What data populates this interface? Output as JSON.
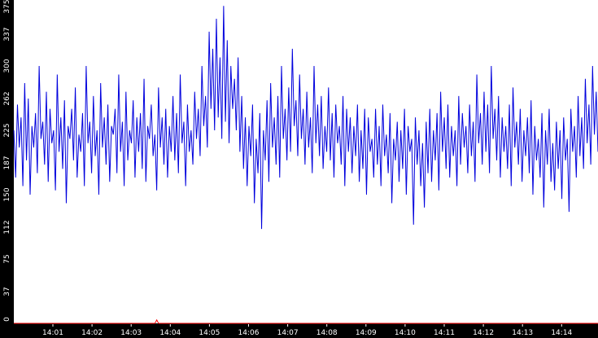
{
  "chart_data": {
    "type": "line",
    "title": "",
    "xlabel": "",
    "ylabel": "",
    "ylim": [
      0,
      375
    ],
    "y_ticks": [
      "0",
      "37",
      "75",
      "112",
      "150",
      "187",
      "225",
      "262",
      "300",
      "337",
      "375"
    ],
    "x_ticks": [
      "14:01",
      "14:02",
      "14:03",
      "14:04",
      "14:05",
      "14:06",
      "14:07",
      "14:08",
      "14:09",
      "14:10",
      "14:11",
      "14:12",
      "14:13",
      "14:14"
    ],
    "grid": false,
    "colors": {
      "primary": "#0000dd",
      "secondary": "#ff0000",
      "axis_band": "#000000",
      "background": "#ffffff"
    },
    "series": [
      {
        "color": "#0000dd",
        "values": [
          225,
          170,
          255,
          205,
          240,
          160,
          280,
          190,
          262,
          150,
          230,
          205,
          245,
          175,
          300,
          215,
          235,
          185,
          270,
          165,
          250,
          210,
          225,
          155,
          290,
          200,
          240,
          180,
          260,
          140,
          230,
          215,
          250,
          190,
          275,
          170,
          220,
          200,
          245,
          160,
          300,
          210,
          235,
          175,
          265,
          195,
          225,
          150,
          280,
          205,
          240,
          185,
          255,
          165,
          230,
          220,
          250,
          175,
          290,
          200,
          235,
          160,
          270,
          190,
          225,
          210,
          260,
          170,
          240,
          200,
          245,
          180,
          285,
          165,
          230,
          215,
          255,
          195,
          220,
          155,
          275,
          205,
          240,
          185,
          250,
          170,
          230,
          200,
          265,
          190,
          245,
          175,
          290,
          210,
          235,
          160,
          255,
          200,
          225,
          185,
          270,
          215,
          250,
          195,
          300,
          230,
          265,
          205,
          340,
          250,
          320,
          225,
          355,
          240,
          310,
          215,
          370,
          235,
          330,
          210,
          300,
          250,
          285,
          225,
          310,
          200,
          265,
          180,
          240,
          160,
          230,
          195,
          255,
          140,
          215,
          175,
          245,
          110,
          225,
          190,
          260,
          165,
          280,
          205,
          240,
          185,
          265,
          170,
          300,
          215,
          250,
          190,
          275,
          200,
          320,
          230,
          260,
          195,
          290,
          215,
          250,
          185,
          270,
          205,
          240,
          175,
          300,
          210,
          255,
          195,
          265,
          180,
          230,
          200,
          275,
          190,
          245,
          170,
          255,
          210,
          230,
          185,
          265,
          160,
          250,
          200,
          240,
          175,
          230,
          195,
          255,
          165,
          225,
          180,
          250,
          150,
          240,
          200,
          215,
          170,
          250,
          185,
          230,
          160,
          255,
          195,
          220,
          175,
          245,
          140,
          215,
          190,
          235,
          165,
          225,
          180,
          250,
          150,
          230,
          200,
          215,
          115,
          240,
          185,
          225,
          160,
          210,
          135,
          235,
          175,
          250,
          165,
          225,
          190,
          245,
          155,
          270,
          200,
          240,
          180,
          255,
          170,
          230,
          195,
          225,
          160,
          265,
          185,
          245,
          205,
          230,
          175,
          255,
          195,
          235,
          165,
          290,
          210,
          245,
          185,
          270,
          200,
          255,
          175,
          300,
          215,
          250,
          190,
          265,
          170,
          240,
          200,
          230,
          180,
          255,
          160,
          275,
          205,
          235,
          185,
          250,
          165,
          225,
          195,
          240,
          175,
          260,
          150,
          230,
          190,
          215,
          170,
          245,
          135,
          225,
          185,
          250,
          165,
          210,
          155,
          235,
          180,
          225,
          145,
          240,
          190,
          215,
          130,
          250,
          200,
          230,
          170,
          265,
          195,
          240,
          180,
          285,
          210,
          255,
          185,
          300,
          220,
          270,
          200
        ]
      },
      {
        "color": "#ff0000",
        "values": [
          0,
          0,
          0,
          0,
          0,
          0,
          0,
          0,
          0,
          0,
          0,
          0,
          0,
          0,
          0,
          0,
          0,
          0,
          0,
          0,
          0,
          0,
          0,
          0,
          0,
          0,
          0,
          0,
          0,
          0,
          0,
          0,
          0,
          0,
          0,
          0,
          0,
          0,
          0,
          0,
          0,
          0,
          0,
          0,
          0,
          0,
          0,
          0,
          0,
          0,
          0,
          0,
          0,
          0,
          0,
          0,
          0,
          0,
          0,
          0,
          0,
          0,
          0,
          0,
          0,
          0,
          0,
          0,
          0,
          0,
          0,
          0,
          0,
          0,
          0,
          0,
          0,
          0,
          0,
          0,
          4,
          0,
          0,
          0,
          0,
          0,
          0,
          0,
          0,
          0,
          0,
          0,
          0,
          0,
          0,
          0,
          0,
          0,
          0,
          0,
          0,
          0,
          0,
          0,
          0,
          0,
          0,
          0,
          0,
          0,
          0,
          0,
          0,
          0,
          0,
          0,
          0,
          0,
          0,
          0,
          0,
          0,
          0,
          0,
          0,
          0,
          0,
          0,
          0,
          0,
          0,
          0,
          0,
          0,
          0,
          0,
          0,
          0,
          0,
          0,
          0,
          0,
          0,
          0,
          0,
          0,
          0,
          0,
          0,
          0,
          0,
          0,
          0,
          0,
          0,
          0,
          0,
          0,
          0,
          0,
          0,
          0,
          0,
          0,
          0,
          0,
          0,
          0,
          0,
          0,
          0,
          0,
          0,
          0,
          0,
          0,
          0,
          0,
          0,
          0,
          0,
          0,
          0,
          0,
          0,
          0,
          0,
          0,
          0,
          0,
          0,
          0,
          0,
          0,
          0,
          0,
          0,
          0,
          0,
          0,
          0,
          0,
          0,
          0,
          0,
          0,
          0,
          0,
          0,
          0,
          0,
          0,
          0,
          0,
          0,
          0,
          0,
          0,
          0,
          0,
          0,
          0,
          0,
          0,
          0,
          0,
          0,
          0,
          0,
          0,
          0,
          0,
          0,
          0,
          0,
          0,
          0,
          0,
          0,
          0,
          0,
          0,
          0,
          0,
          0,
          0,
          0,
          0,
          0,
          0,
          0,
          0,
          0,
          0,
          0,
          0,
          0,
          0,
          0,
          0,
          0,
          0,
          0,
          0,
          0,
          0,
          0,
          0,
          0,
          0,
          0,
          0,
          0,
          0,
          0,
          0,
          0,
          0,
          0,
          0,
          0,
          0,
          0,
          0,
          0,
          0,
          0,
          0,
          0,
          0,
          0,
          0,
          0,
          0,
          0,
          0,
          0,
          0,
          0,
          0,
          0,
          0,
          0,
          0,
          0,
          0,
          0,
          0,
          0,
          0,
          0,
          0,
          0,
          0,
          0,
          0,
          0,
          0,
          0,
          0,
          0,
          0,
          0,
          0,
          0,
          0,
          0,
          0
        ]
      }
    ]
  }
}
